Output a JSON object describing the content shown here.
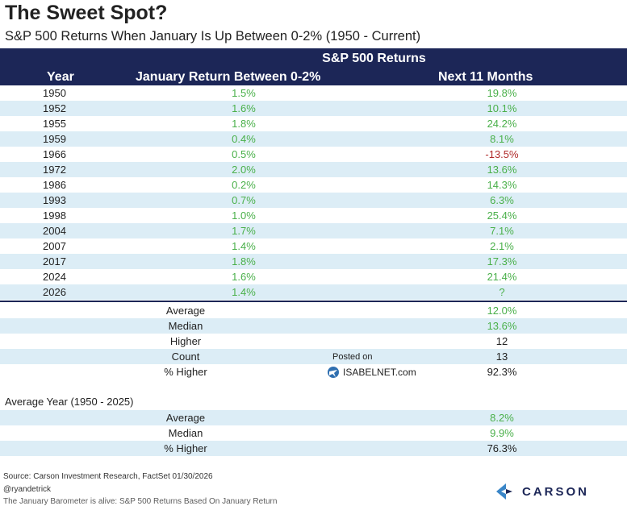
{
  "title": "The Sweet Spot?",
  "subtitle": "S&P 500 Returns When January Is Up Between 0-2% (1950 - Current)",
  "header": {
    "group": "S&P 500 Returns",
    "col_year": "Year",
    "col_jan": "January Return Between 0-2%",
    "col_next": "Next 11 Months"
  },
  "rows": [
    {
      "year": "1950",
      "jan": "1.5%",
      "next": "19.8%"
    },
    {
      "year": "1952",
      "jan": "1.6%",
      "next": "10.1%"
    },
    {
      "year": "1955",
      "jan": "1.8%",
      "next": "24.2%"
    },
    {
      "year": "1959",
      "jan": "0.4%",
      "next": "8.1%"
    },
    {
      "year": "1966",
      "jan": "0.5%",
      "next": "-13.5%"
    },
    {
      "year": "1972",
      "jan": "2.0%",
      "next": "13.6%"
    },
    {
      "year": "1986",
      "jan": "0.2%",
      "next": "14.3%"
    },
    {
      "year": "1993",
      "jan": "0.7%",
      "next": "6.3%"
    },
    {
      "year": "1998",
      "jan": "1.0%",
      "next": "25.4%"
    },
    {
      "year": "2004",
      "jan": "1.7%",
      "next": "7.1%"
    },
    {
      "year": "2007",
      "jan": "1.4%",
      "next": "2.1%"
    },
    {
      "year": "2017",
      "jan": "1.8%",
      "next": "17.3%"
    },
    {
      "year": "2024",
      "jan": "1.6%",
      "next": "21.4%"
    },
    {
      "year": "2026",
      "jan": "1.4%",
      "next": "?"
    }
  ],
  "stats": [
    {
      "label": "Average",
      "value": "12.0%"
    },
    {
      "label": "Median",
      "value": "13.6%"
    },
    {
      "label": "Higher",
      "value": "12"
    },
    {
      "label": "Count",
      "value": "13"
    },
    {
      "label": "% Higher",
      "value": "92.3%"
    }
  ],
  "average_year": {
    "label": "Average Year (1950 - 2025)",
    "stats": [
      {
        "label": "Average",
        "value": "8.2%"
      },
      {
        "label": "Median",
        "value": "9.9%"
      },
      {
        "label": "% Higher",
        "value": "76.3%"
      }
    ]
  },
  "watermark": {
    "posted_on": "Posted on",
    "site": "ISABELNET.com"
  },
  "footer": {
    "source": "Source: Carson Investment Research, FactSet 01/30/2026",
    "handle": "@ryandetrick",
    "cutoff": "The January Barometer is alive: S&P 500 Returns Based On January Return",
    "brand": "CARSON"
  },
  "colors": {
    "navy": "#1c2657",
    "green": "#4ab04a",
    "red": "#b02a2a",
    "stripe": "#dcedf6"
  }
}
